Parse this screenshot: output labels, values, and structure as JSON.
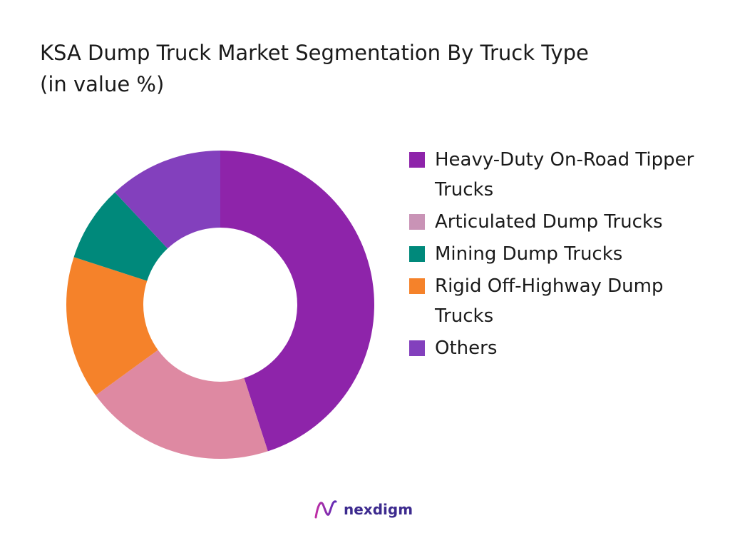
{
  "title": {
    "line1": "KSA Dump Truck Market Segmentation By Truck Type",
    "line2": "(in value %)"
  },
  "brand": {
    "name": "nexdigm",
    "icon": "nexdigm-logo-icon"
  },
  "chart_data": {
    "type": "pie",
    "style": "donut",
    "unit": "%",
    "legend_position": "right",
    "slices": [
      {
        "label": "Heavy-Duty On-Road Tipper Trucks",
        "value": 45,
        "color": "#8e24aa"
      },
      {
        "label": "Articulated Dump Trucks",
        "value": 20,
        "color": "#de89a2"
      },
      {
        "label": "Rigid Off-Highway Dump Trucks",
        "value": 15,
        "color": "#f5822a"
      },
      {
        "label": "Mining Dump Trucks",
        "value": 8,
        "color": "#00897b"
      },
      {
        "label": "Others",
        "value": 12,
        "color": "#8340bd"
      }
    ],
    "legend": [
      {
        "label": "Heavy-Duty On-Road Tipper Trucks",
        "color": "#8e24aa"
      },
      {
        "label": "Articulated Dump Trucks",
        "color": "#c993b6"
      },
      {
        "label": "Mining Dump Trucks",
        "color": "#00897b"
      },
      {
        "label": "Rigid Off-Highway Dump Trucks",
        "color": "#f5822a"
      },
      {
        "label": "Others",
        "color": "#8340bd"
      }
    ]
  }
}
